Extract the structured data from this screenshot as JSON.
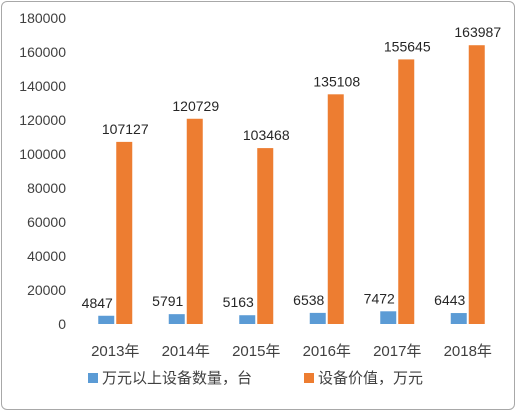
{
  "chart_data": {
    "type": "bar",
    "categories": [
      "2013年",
      "2014年",
      "2015年",
      "2016年",
      "2017年",
      "2018年"
    ],
    "series": [
      {
        "name": "万元以上设备数量，台",
        "color": "#5B9BD5",
        "values": [
          4847,
          5791,
          5163,
          6538,
          7472,
          6443
        ]
      },
      {
        "name": "设备价值，万元",
        "color": "#ED7D31",
        "values": [
          107127,
          120729,
          103468,
          135108,
          155645,
          163987
        ]
      }
    ],
    "y_ticks": [
      "0",
      "20000",
      "40000",
      "60000",
      "80000",
      "100000",
      "120000",
      "140000",
      "160000",
      "180000"
    ],
    "ylim": [
      0,
      180000
    ],
    "grid": false,
    "legend_position": "bottom",
    "data_labels": true
  }
}
